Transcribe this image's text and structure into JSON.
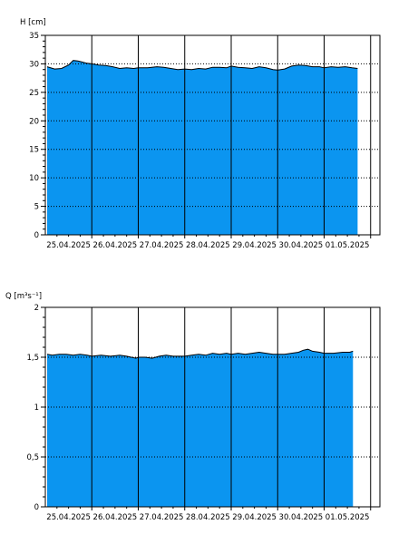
{
  "colors": {
    "fill": "#0b95f0",
    "outline": "#000000",
    "frame": "#000000",
    "grid": "#000000",
    "background": "#ffffff"
  },
  "chart_data": [
    {
      "type": "area",
      "ylabel": "H [cm]",
      "ylim": [
        0,
        35
      ],
      "y_ticks": [
        "0",
        "5",
        "10",
        "15",
        "20",
        "25",
        "30",
        "35"
      ],
      "x_ticks": [
        "25.04.2025",
        "26.04.2025",
        "27.04.2025",
        "28.04.2025",
        "29.04.2025",
        "30.04.2025",
        "01.05.2025"
      ],
      "xlim_days": [
        0,
        7.2
      ],
      "grid": "horizontal dotted at major ticks, vertical solid at day boundaries",
      "series": [
        {
          "x": [
            0.04,
            0.2,
            0.35,
            0.5,
            0.6,
            0.7,
            0.8,
            0.9,
            1.0,
            1.15,
            1.3,
            1.45,
            1.6,
            1.75,
            1.9,
            2.0,
            2.2,
            2.4,
            2.55,
            2.7,
            2.85,
            3.0,
            3.15,
            3.3,
            3.45,
            3.6,
            3.75,
            3.9,
            4.0,
            4.15,
            4.3,
            4.45,
            4.6,
            4.75,
            4.9,
            5.0,
            5.15,
            5.3,
            5.45,
            5.6,
            5.75,
            5.9,
            6.0,
            6.15,
            6.3,
            6.45,
            6.6,
            6.72
          ],
          "values": [
            29.5,
            29.1,
            29.2,
            29.8,
            30.6,
            30.5,
            30.3,
            30.1,
            30.0,
            29.8,
            29.7,
            29.5,
            29.2,
            29.3,
            29.2,
            29.3,
            29.3,
            29.5,
            29.4,
            29.2,
            29.0,
            29.1,
            29.0,
            29.2,
            29.1,
            29.4,
            29.4,
            29.3,
            29.6,
            29.4,
            29.3,
            29.2,
            29.5,
            29.3,
            29.0,
            28.9,
            29.1,
            29.6,
            29.8,
            29.7,
            29.5,
            29.5,
            29.3,
            29.5,
            29.4,
            29.5,
            29.3,
            29.2
          ]
        }
      ]
    },
    {
      "type": "area",
      "ylabel": "Q [m³s⁻¹]",
      "ylim": [
        0,
        2
      ],
      "y_ticks": [
        "0",
        "0,5",
        "1",
        "1,5",
        "2"
      ],
      "x_ticks": [
        "25.04.2025",
        "26.04.2025",
        "27.04.2025",
        "28.04.2025",
        "29.04.2025",
        "30.04.2025",
        "01.05.2025"
      ],
      "xlim_days": [
        0,
        7.2
      ],
      "grid": "horizontal dotted at major ticks, vertical solid at day boundaries",
      "series": [
        {
          "x": [
            0.04,
            0.15,
            0.3,
            0.45,
            0.6,
            0.75,
            0.9,
            1.0,
            1.2,
            1.4,
            1.6,
            1.75,
            1.85,
            1.95,
            2.0,
            2.15,
            2.3,
            2.45,
            2.6,
            2.75,
            3.0,
            3.15,
            3.3,
            3.45,
            3.6,
            3.75,
            3.9,
            4.0,
            4.15,
            4.3,
            4.45,
            4.6,
            4.75,
            4.9,
            5.0,
            5.15,
            5.3,
            5.45,
            5.55,
            5.65,
            5.75,
            5.9,
            6.0,
            6.2,
            6.4,
            6.55,
            6.62
          ],
          "values": [
            1.53,
            1.52,
            1.53,
            1.53,
            1.52,
            1.53,
            1.52,
            1.51,
            1.52,
            1.51,
            1.52,
            1.51,
            1.5,
            1.49,
            1.5,
            1.5,
            1.49,
            1.51,
            1.52,
            1.51,
            1.51,
            1.52,
            1.53,
            1.52,
            1.54,
            1.53,
            1.54,
            1.53,
            1.54,
            1.53,
            1.54,
            1.55,
            1.54,
            1.53,
            1.53,
            1.53,
            1.54,
            1.55,
            1.57,
            1.58,
            1.56,
            1.55,
            1.54,
            1.54,
            1.55,
            1.55,
            1.56
          ]
        }
      ]
    }
  ]
}
